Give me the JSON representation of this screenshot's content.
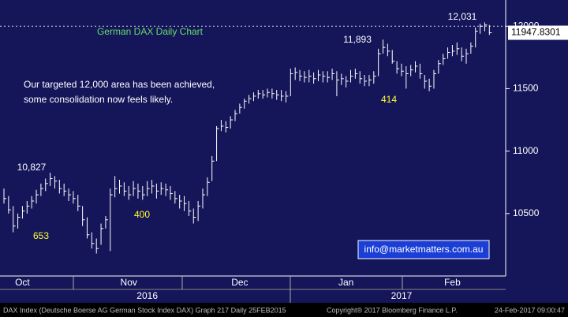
{
  "chart_data": {
    "type": "ohlc",
    "title": "German DAX Daily Chart",
    "notes": [
      "Our targeted 12,000 area has been achieved,",
      "some consolidation now feels likely."
    ],
    "annotations": [
      {
        "text": "10,827",
        "color": "#ffffff"
      },
      {
        "text": "653",
        "color": "#ffff33"
      },
      {
        "text": "400",
        "color": "#ffff33"
      },
      {
        "text": "414",
        "color": "#ffff33"
      },
      {
        "text": "11,893",
        "color": "#ffffff"
      },
      {
        "text": "12,031",
        "color": "#ffffff"
      }
    ],
    "contact": "info@marketmatters.com.au",
    "footer": [
      "DAX Index (Deutsche Boerse AG German Stock Index DAX) Graph 217  Daily 25FEB2015",
      "Copyright® 2017 Bloomberg Finance L.P.",
      "24-Feb-2017 09:00:47"
    ],
    "categories": [
      null,
      null,
      null,
      null,
      "Oct",
      null,
      null,
      null,
      null,
      null,
      null,
      null,
      null,
      null,
      null,
      null,
      null,
      null,
      null,
      null,
      null,
      null,
      null,
      null,
      null,
      null,
      null,
      "Nov",
      null,
      null,
      null,
      null,
      null,
      null,
      null,
      null,
      null,
      null,
      null,
      null,
      null,
      null,
      null,
      null,
      null,
      null,
      null,
      null,
      null,
      null,
      null,
      "Dec",
      null,
      null,
      null,
      null,
      null,
      null,
      null,
      null,
      null,
      null,
      null,
      null,
      null,
      null,
      null,
      null,
      null,
      null,
      null,
      null,
      null,
      null,
      "Jan",
      null,
      null,
      null,
      null,
      null,
      null,
      null,
      null,
      null,
      null,
      null,
      null,
      null,
      null,
      null,
      null,
      null,
      null,
      null,
      null,
      null,
      null,
      "Feb",
      null,
      null,
      null,
      null,
      null,
      null,
      null,
      null
    ],
    "years": [
      null,
      null,
      null,
      null,
      null,
      null,
      null,
      null,
      null,
      null,
      null,
      null,
      null,
      null,
      null,
      null,
      null,
      null,
      null,
      null,
      null,
      null,
      null,
      null,
      null,
      null,
      null,
      null,
      null,
      null,
      null,
      "2016",
      null,
      null,
      null,
      null,
      null,
      null,
      null,
      null,
      null,
      null,
      null,
      null,
      null,
      null,
      null,
      null,
      null,
      null,
      null,
      null,
      null,
      null,
      null,
      null,
      null,
      null,
      null,
      null,
      null,
      null,
      null,
      null,
      null,
      null,
      null,
      null,
      null,
      null,
      null,
      null,
      null,
      null,
      null,
      null,
      null,
      null,
      null,
      null,
      null,
      null,
      null,
      null,
      null,
      null,
      "2017",
      null,
      null,
      null,
      null,
      null,
      null,
      null,
      null,
      null,
      null,
      null,
      null,
      null,
      null,
      null,
      null,
      null,
      null,
      null
    ],
    "series": [
      {
        "color": "#ffffff",
        "values": [
          10620,
          10530,
          10400,
          10470,
          10520,
          10560,
          10600,
          10650,
          10700,
          10740,
          10780,
          10760,
          10700,
          10680,
          10650,
          10620,
          10560,
          10450,
          10330,
          10260,
          10220,
          10380,
          10450,
          10650,
          10700,
          10720,
          10680,
          10650,
          10700,
          10680,
          10650,
          10700,
          10720,
          10680,
          10700,
          10690,
          10660,
          10620,
          10600,
          10580,
          10520,
          10470,
          10560,
          10650,
          10750,
          10920,
          11180,
          11200,
          11190,
          11250,
          11300,
          11350,
          11400,
          11420,
          11440,
          11460,
          11450,
          11470,
          11460,
          11450,
          11440,
          11440,
          11620,
          11630,
          11600,
          11590,
          11600,
          11580,
          11610,
          11600,
          11590,
          11620,
          11570,
          11580,
          11560,
          11600,
          11620,
          11580,
          11560,
          11570,
          11600,
          11780,
          11830,
          11800,
          11720,
          11660,
          11640,
          11620,
          11650,
          11680,
          11620,
          11560,
          11520,
          11620,
          11700,
          11740,
          11790,
          11800,
          11820,
          11760,
          11780,
          11840,
          11960,
          12000,
          12010,
          11947.8301
        ],
        "high": [
          10700,
          10640,
          10560,
          10500,
          10560,
          10600,
          10640,
          10690,
          10740,
          10780,
          10827,
          10800,
          10770,
          10740,
          10700,
          10680,
          10650,
          10560,
          10470,
          10350,
          10300,
          10420,
          10480,
          10700,
          10800,
          10770,
          10750,
          10720,
          10760,
          10740,
          10720,
          10760,
          10770,
          10740,
          10750,
          10740,
          10720,
          10680,
          10650,
          10640,
          10600,
          10540,
          10600,
          10700,
          10790,
          10960,
          11200,
          11250,
          11240,
          11280,
          11330,
          11380,
          11420,
          11450,
          11470,
          11490,
          11490,
          11500,
          11500,
          11490,
          11490,
          11480,
          11660,
          11670,
          11650,
          11640,
          11650,
          11630,
          11650,
          11640,
          11640,
          11660,
          11640,
          11620,
          11600,
          11650,
          11660,
          11640,
          11610,
          11610,
          11640,
          11820,
          11893,
          11860,
          11810,
          11720,
          11700,
          11680,
          11690,
          11720,
          11700,
          11610,
          11580,
          11650,
          11730,
          11780,
          11830,
          11850,
          11870,
          11830,
          11820,
          11870,
          11990,
          12020,
          12031,
          12010
        ],
        "low": [
          10580,
          10500,
          10350,
          10380,
          10460,
          10500,
          10540,
          10580,
          10640,
          10680,
          10720,
          10700,
          10660,
          10640,
          10600,
          10580,
          10520,
          10400,
          10300,
          10220,
          10180,
          10250,
          10380,
          10200,
          10630,
          10660,
          10640,
          10610,
          10640,
          10620,
          10610,
          10640,
          10660,
          10620,
          10650,
          10640,
          10610,
          10580,
          10540,
          10520,
          10480,
          10420,
          10440,
          10540,
          10640,
          10760,
          10920,
          11160,
          11150,
          11180,
          11240,
          11300,
          11340,
          11380,
          11400,
          11420,
          11420,
          11430,
          11420,
          11410,
          11400,
          11390,
          11440,
          11570,
          11560,
          11550,
          11550,
          11540,
          11560,
          11550,
          11550,
          11570,
          11440,
          11530,
          11510,
          11550,
          11580,
          11540,
          11520,
          11520,
          11540,
          11600,
          11780,
          11760,
          11700,
          11620,
          11600,
          11500,
          11600,
          11630,
          11580,
          11500,
          11480,
          11500,
          11620,
          11690,
          11740,
          11760,
          11770,
          11720,
          11700,
          11780,
          11830,
          11940,
          11960,
          11930
        ]
      }
    ],
    "ylim": [
      10000,
      12210
    ],
    "yticks": [
      10500,
      11000,
      11500,
      12000
    ]
  }
}
